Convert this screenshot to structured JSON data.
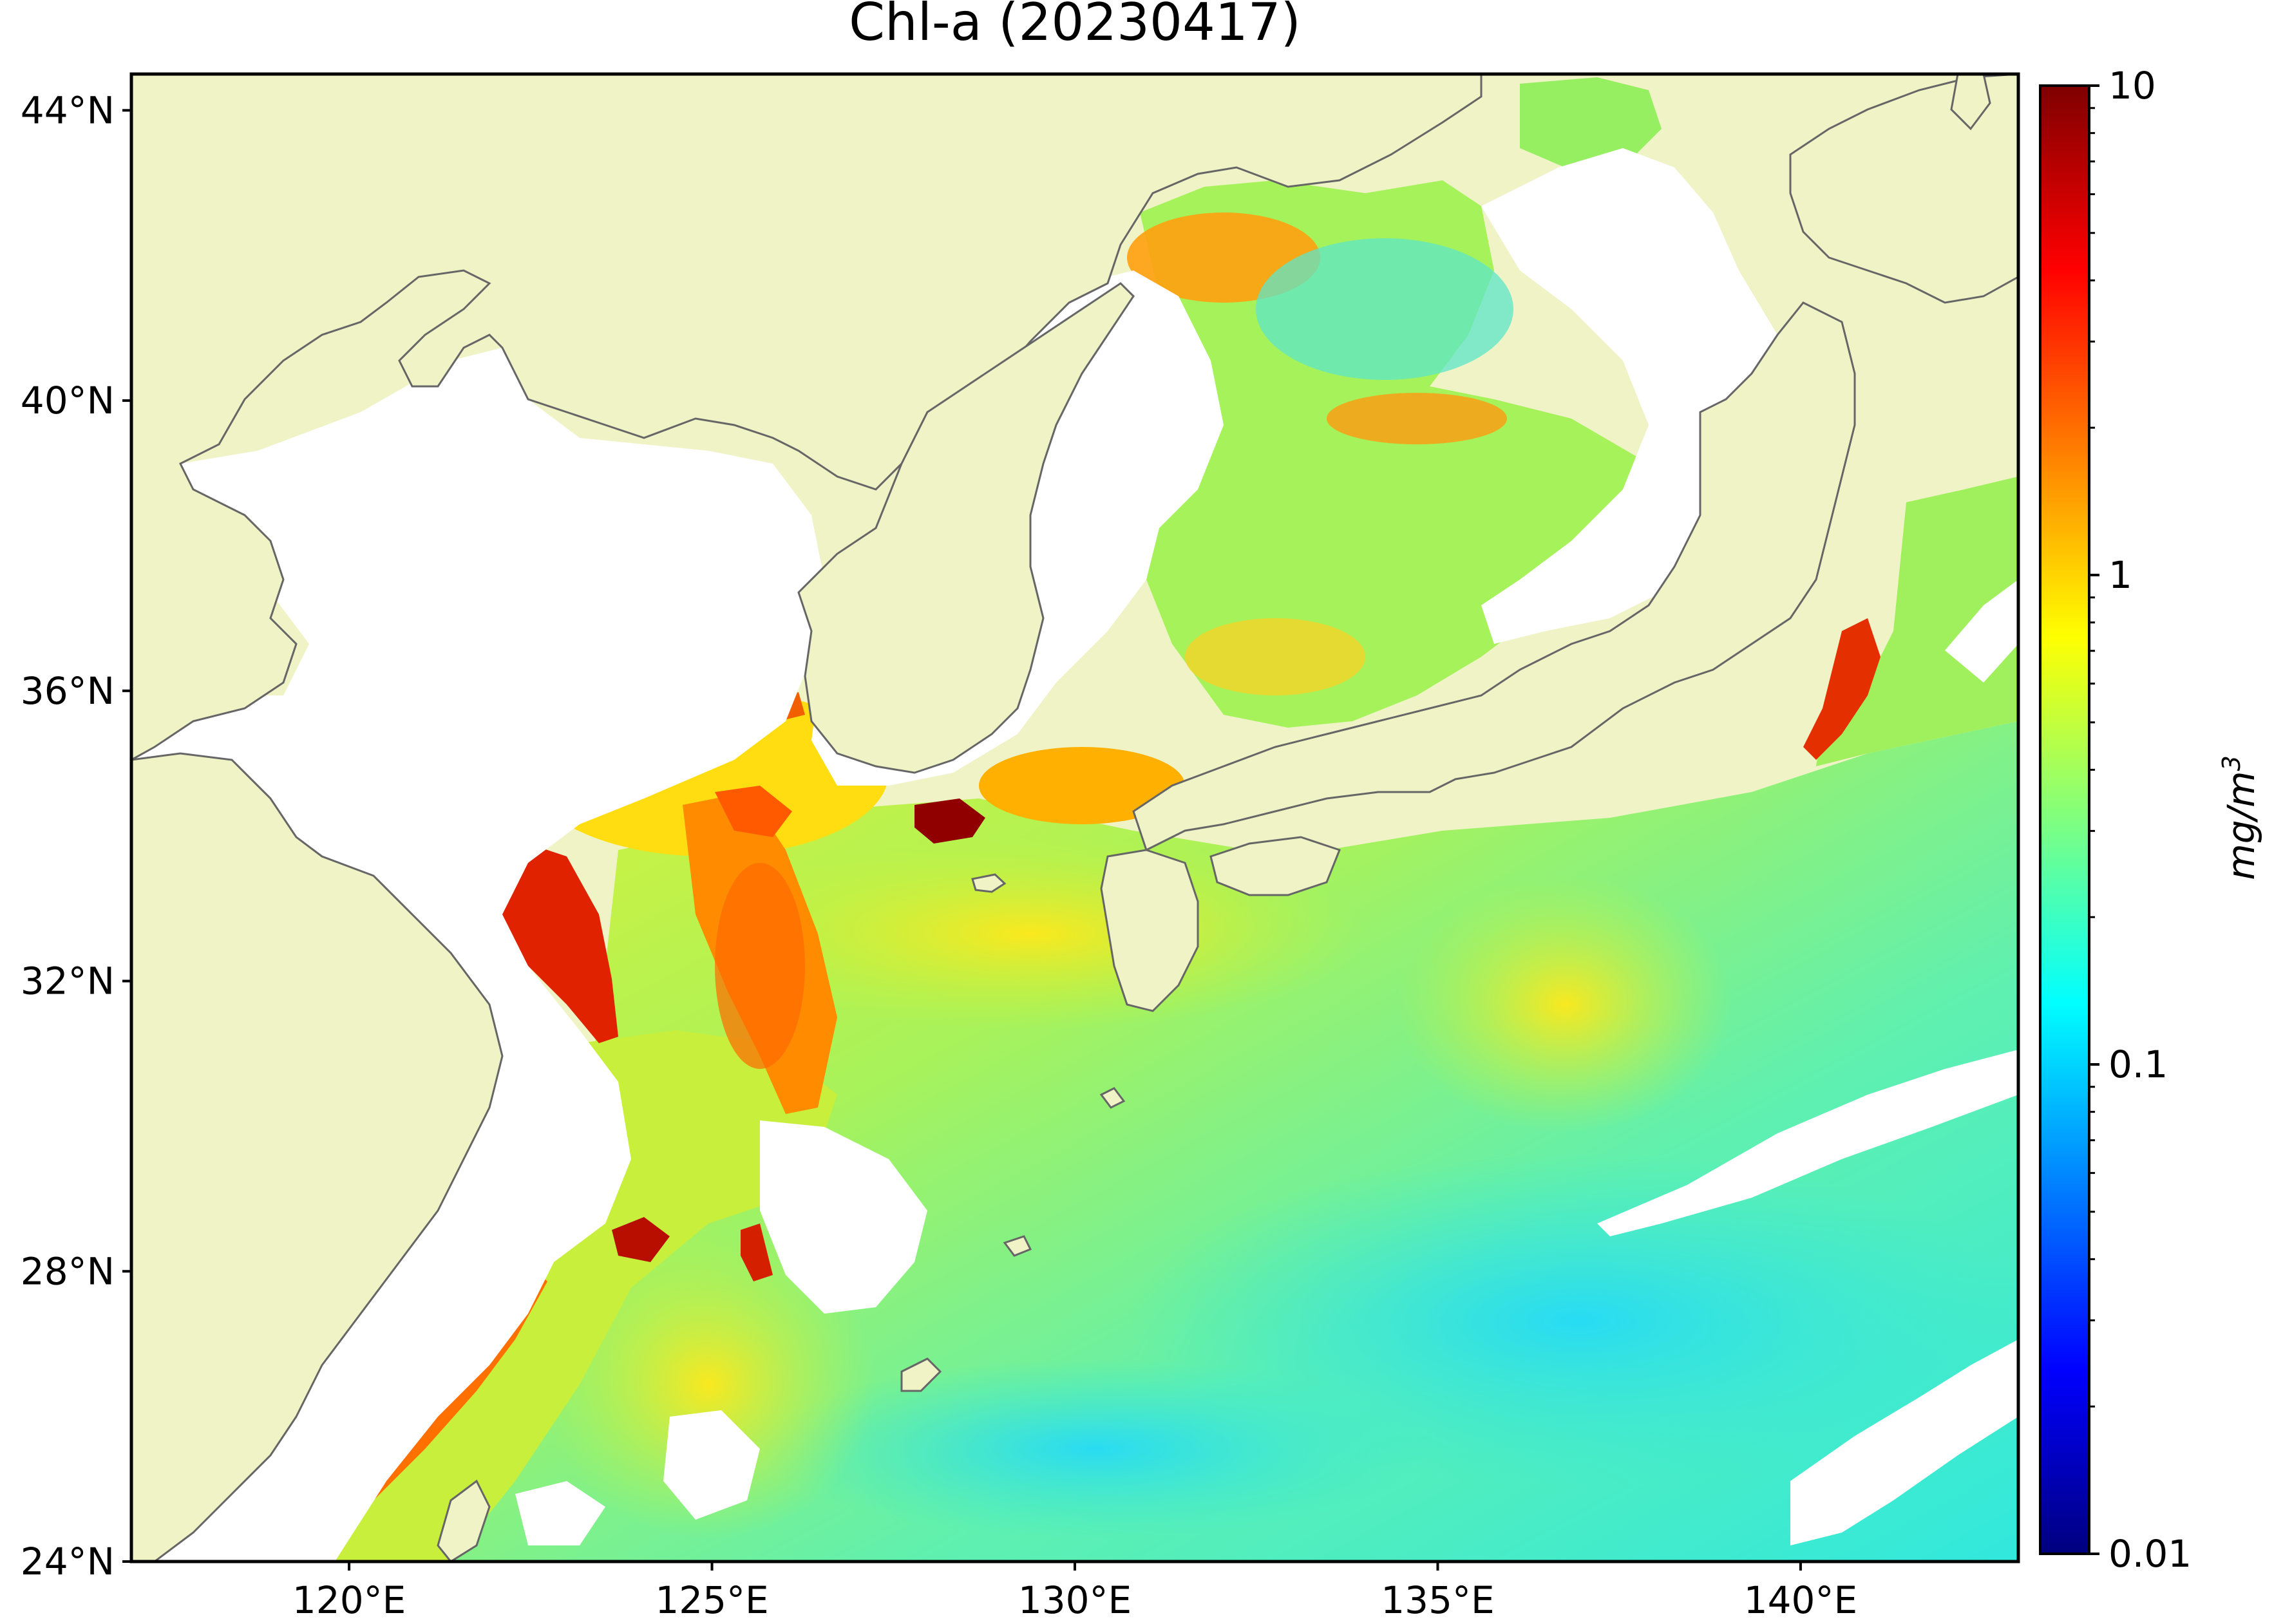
{
  "title": "Chl-a (20230417)",
  "map": {
    "lat_range": [
      24,
      44.5
    ],
    "lon_range": [
      117,
      143
    ],
    "lat_ticks": [
      {
        "value": 44,
        "label": "44°N"
      },
      {
        "value": 40,
        "label": "40°N"
      },
      {
        "value": 36,
        "label": "36°N"
      },
      {
        "value": 32,
        "label": "32°N"
      },
      {
        "value": 28,
        "label": "28°N"
      },
      {
        "value": 24,
        "label": "24°N"
      }
    ],
    "lon_ticks": [
      {
        "value": 120,
        "label": "120°E"
      },
      {
        "value": 125,
        "label": "125°E"
      },
      {
        "value": 130,
        "label": "130°E"
      },
      {
        "value": 135,
        "label": "135°E"
      },
      {
        "value": 140,
        "label": "140°E"
      }
    ],
    "land_color": "#eff3c6",
    "nodata_color": "#ffffff",
    "coast_color": "#666666"
  },
  "colorbar": {
    "label": "mg/m",
    "label_superscript": "3",
    "scale": "log",
    "range": [
      0.01,
      10
    ],
    "ticks": [
      {
        "value": 10,
        "label": "10"
      },
      {
        "value": 1,
        "label": "1"
      },
      {
        "value": 0.1,
        "label": "0.1"
      },
      {
        "value": 0.01,
        "label": "0.01"
      }
    ],
    "colormap": "jet",
    "colormap_stops": [
      "#00007f",
      "#0000ff",
      "#007fff",
      "#00ffff",
      "#7fff7f",
      "#ffff00",
      "#ff7f00",
      "#ff0000",
      "#7f0000"
    ]
  }
}
